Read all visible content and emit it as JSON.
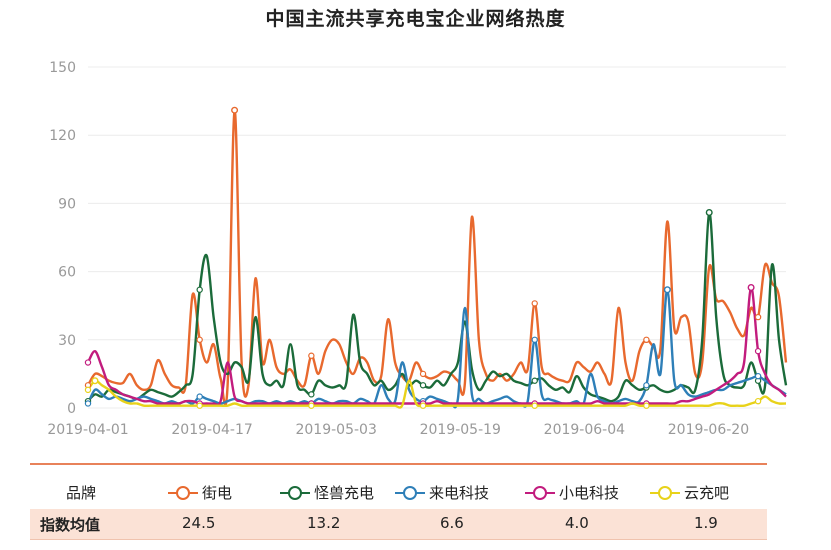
{
  "chart_data": {
    "type": "line",
    "title": "中国主流共享充电宝企业网络热度",
    "xlabel": "",
    "ylabel": "",
    "ylim": [
      0,
      150
    ],
    "yticks": [
      0,
      30,
      60,
      90,
      120,
      150
    ],
    "x_start": "2019-04-01",
    "x_end": "2019-06-30",
    "xticks": [
      "2019-04-01",
      "2019-04-17",
      "2019-05-03",
      "2019-05-19",
      "2019-06-04",
      "2019-06-20"
    ],
    "grid": true,
    "legend_position": "bottom",
    "series": [
      {
        "name": "街电",
        "color": "#e8692e",
        "values": [
          10,
          15,
          14,
          12,
          11,
          11,
          15,
          10,
          8,
          10,
          21,
          15,
          10,
          9,
          10,
          50,
          30,
          20,
          28,
          13,
          10,
          131,
          20,
          10,
          57,
          20,
          30,
          18,
          15,
          17,
          12,
          10,
          23,
          15,
          25,
          30,
          28,
          20,
          15,
          22,
          20,
          12,
          14,
          39,
          20,
          14,
          12,
          20,
          15,
          13,
          14,
          16,
          15,
          12,
          11,
          84,
          30,
          15,
          12,
          15,
          12,
          15,
          20,
          17,
          46,
          18,
          15,
          13,
          12,
          12,
          20,
          18,
          16,
          20,
          15,
          12,
          44,
          20,
          12,
          25,
          30,
          27,
          26,
          82,
          35,
          40,
          38,
          15,
          20,
          62,
          48,
          47,
          42,
          35,
          32,
          44,
          40,
          63,
          55,
          49,
          20
        ]
      },
      {
        "name": "怪兽充电",
        "color": "#1b6b3a",
        "values": [
          3,
          6,
          5,
          8,
          7,
          6,
          5,
          4,
          6,
          8,
          7,
          6,
          5,
          7,
          10,
          15,
          52,
          67,
          40,
          20,
          15,
          20,
          18,
          12,
          40,
          15,
          10,
          12,
          10,
          28,
          10,
          8,
          6,
          12,
          10,
          9,
          10,
          11,
          41,
          20,
          15,
          10,
          12,
          8,
          10,
          15,
          10,
          12,
          10,
          9,
          12,
          10,
          15,
          20,
          38,
          17,
          8,
          12,
          16,
          14,
          15,
          12,
          11,
          10,
          12,
          13,
          10,
          8,
          9,
          7,
          14,
          9,
          6,
          5,
          4,
          3,
          5,
          12,
          10,
          8,
          9,
          10,
          8,
          7,
          8,
          10,
          9,
          8,
          30,
          86,
          40,
          15,
          10,
          9,
          10,
          20,
          12,
          10,
          63,
          30,
          10
        ]
      },
      {
        "name": "来电科技",
        "color": "#2e7fb8",
        "values": [
          2,
          8,
          6,
          4,
          5,
          4,
          3,
          4,
          5,
          4,
          3,
          2,
          3,
          2,
          3,
          2,
          5,
          4,
          3,
          2,
          3,
          4,
          3,
          2,
          3,
          3,
          2,
          3,
          2,
          3,
          2,
          3,
          2,
          4,
          3,
          2,
          3,
          3,
          2,
          4,
          3,
          2,
          10,
          4,
          3,
          20,
          8,
          4,
          3,
          5,
          4,
          3,
          2,
          4,
          44,
          6,
          4,
          2,
          3,
          4,
          5,
          3,
          2,
          3,
          30,
          6,
          4,
          3,
          2,
          2,
          3,
          2,
          15,
          5,
          3,
          2,
          3,
          4,
          3,
          3,
          10,
          28,
          15,
          52,
          12,
          10,
          6,
          5,
          6,
          7,
          8,
          8,
          10,
          11,
          12,
          13,
          14,
          12,
          10,
          8,
          6
        ]
      },
      {
        "name": "小电科技",
        "color": "#c21c7e",
        "values": [
          20,
          25,
          18,
          10,
          8,
          6,
          5,
          4,
          3,
          3,
          2,
          2,
          2,
          2,
          3,
          3,
          2,
          2,
          2,
          3,
          20,
          5,
          3,
          2,
          2,
          2,
          2,
          2,
          2,
          2,
          2,
          2,
          2,
          2,
          2,
          2,
          2,
          2,
          2,
          2,
          2,
          2,
          2,
          2,
          2,
          2,
          2,
          2,
          2,
          2,
          3,
          2,
          2,
          2,
          2,
          2,
          2,
          2,
          2,
          2,
          2,
          2,
          2,
          2,
          2,
          2,
          2,
          2,
          2,
          2,
          2,
          2,
          2,
          3,
          2,
          2,
          2,
          2,
          2,
          2,
          2,
          2,
          2,
          2,
          2,
          3,
          3,
          4,
          5,
          6,
          8,
          10,
          12,
          15,
          20,
          53,
          25,
          15,
          10,
          8,
          5
        ]
      },
      {
        "name": "云充吧",
        "color": "#e8d21a",
        "values": [
          8,
          12,
          10,
          8,
          5,
          3,
          2,
          2,
          1,
          1,
          1,
          1,
          1,
          1,
          1,
          1,
          1,
          1,
          1,
          1,
          1,
          2,
          1,
          1,
          1,
          1,
          1,
          1,
          1,
          1,
          1,
          1,
          1,
          1,
          1,
          1,
          1,
          1,
          1,
          1,
          1,
          1,
          1,
          1,
          1,
          1,
          12,
          2,
          1,
          1,
          1,
          1,
          1,
          1,
          1,
          1,
          1,
          1,
          1,
          1,
          1,
          1,
          1,
          1,
          1,
          1,
          1,
          1,
          1,
          1,
          1,
          1,
          1,
          1,
          1,
          1,
          1,
          1,
          2,
          1,
          1,
          1,
          1,
          1,
          1,
          1,
          1,
          1,
          1,
          1,
          2,
          2,
          1,
          1,
          1,
          2,
          3,
          5,
          3,
          2,
          2
        ]
      }
    ]
  },
  "legend": {
    "head_brand": "品牌",
    "head_index": "指数均值",
    "items": [
      {
        "name": "街电",
        "color": "#e8692e",
        "index": "24.5"
      },
      {
        "name": "怪兽充电",
        "color": "#1b6b3a",
        "index": "13.2"
      },
      {
        "name": "来电科技",
        "color": "#2e7fb8",
        "index": "6.6"
      },
      {
        "name": "小电科技",
        "color": "#c21c7e",
        "index": "4.0"
      },
      {
        "name": "云充吧",
        "color": "#e8d21a",
        "index": "1.9"
      }
    ]
  }
}
